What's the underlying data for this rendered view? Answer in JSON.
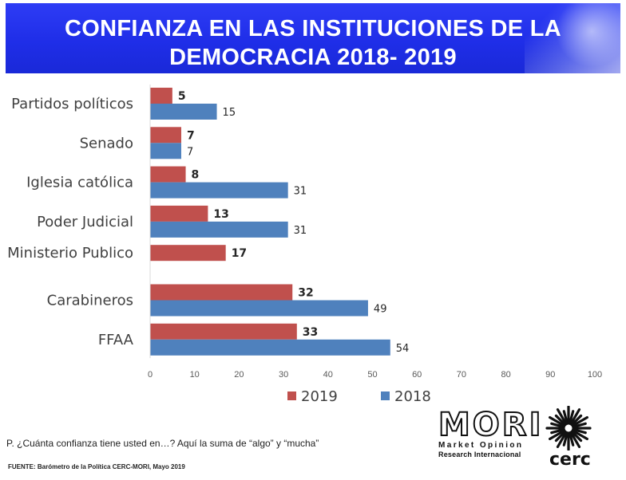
{
  "header": {
    "title_line1": "CONFIANZA EN LAS INSTITUCIONES DE LA",
    "title_line2": "DEMOCRACIA 2018- 2019"
  },
  "chart_data": {
    "type": "bar",
    "orientation": "horizontal",
    "title": "CONFIANZA EN LAS INSTITUCIONES DE LA DEMOCRACIA 2018- 2019",
    "categories": [
      "Partidos políticos",
      "Senado",
      "Iglesia católica",
      "Poder Judicial",
      "Ministerio Publico",
      "Carabineros",
      "FFAA"
    ],
    "series": [
      {
        "name": "2019",
        "color": "#c0504d",
        "values": [
          5,
          7,
          8,
          13,
          17,
          32,
          33
        ]
      },
      {
        "name": "2018",
        "color": "#4f81bd",
        "values": [
          15,
          7,
          31,
          31,
          null,
          49,
          54
        ]
      }
    ],
    "xlim": [
      0,
      100
    ],
    "xticks": [
      "0",
      "10",
      "20",
      "30",
      "40",
      "50",
      "60",
      "70",
      "80",
      "90",
      "100"
    ],
    "grid": false,
    "legend": "bottom-center",
    "xlabel": "",
    "ylabel": ""
  },
  "footer": {
    "question": "P. ¿Cuánta confianza tiene usted en…? Aquí la suma de “algo” y “mucha”",
    "source": "FUENTE: Barómetro de la Política CERC-MORI, Mayo 2019"
  },
  "logos": {
    "mori_main": "MORI",
    "mori_line1": "Market Opinion",
    "mori_line2": "Research Internacional",
    "cerc": "cerc"
  },
  "colors": {
    "banner": "#1f2ee8",
    "series_2019": "#c0504d",
    "series_2018": "#4f81bd"
  }
}
